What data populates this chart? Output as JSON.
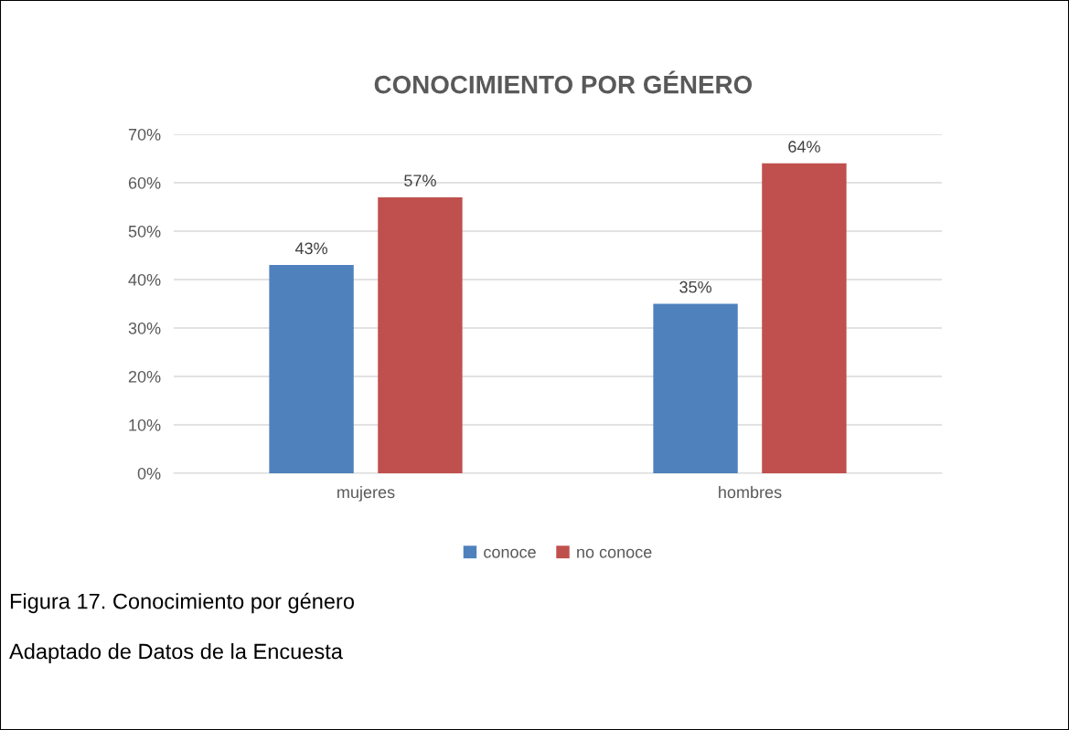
{
  "chart_data": {
    "type": "bar",
    "title": "CONOCIMIENTO POR GÉNERO",
    "categories": [
      "mujeres",
      "hombres"
    ],
    "series": [
      {
        "name": "conoce",
        "color": "#4f81bd",
        "values": [
          43,
          35
        ],
        "value_labels": [
          "43%",
          "35%"
        ]
      },
      {
        "name": "no conoce",
        "color": "#c0504d",
        "values": [
          57,
          64
        ],
        "value_labels": [
          "57%",
          "64%"
        ]
      }
    ],
    "ylim": [
      0,
      70
    ],
    "yticks": [
      {
        "value": 0,
        "label": "0%"
      },
      {
        "value": 10,
        "label": "10%"
      },
      {
        "value": 20,
        "label": "20%"
      },
      {
        "value": 30,
        "label": "30%"
      },
      {
        "value": 40,
        "label": "40%"
      },
      {
        "value": 50,
        "label": "50%"
      },
      {
        "value": 60,
        "label": "60%"
      },
      {
        "value": 70,
        "label": "70%"
      }
    ],
    "grid": "y",
    "legend": "bottom",
    "annotations": [
      "Figura 17. Conocimiento por género",
      "Adaptado de Datos de la Encuesta"
    ]
  }
}
